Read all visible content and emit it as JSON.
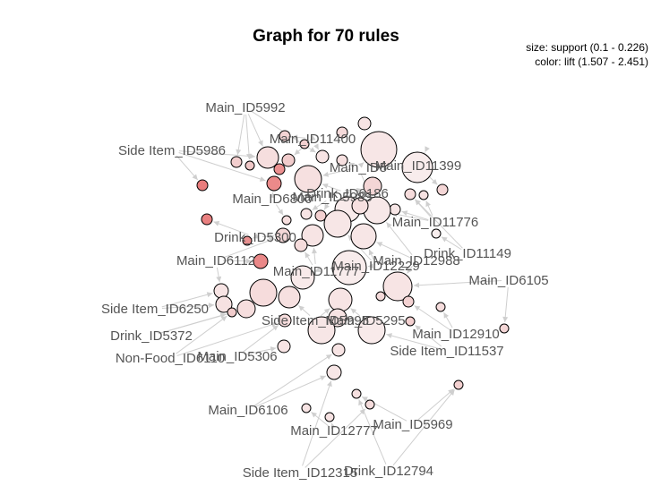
{
  "chart_data": {
    "type": "network",
    "title": "Graph for 70 rules",
    "legend": {
      "size": "size: support (0.1 - 0.226)",
      "color": "color: lift (1.507 - 2.451)"
    },
    "items": [
      "Main_ID5992",
      "Main_ID11400",
      "Side Item_ID5986",
      "Main_ID5",
      "Main_ID11399",
      "Drink_ID6186",
      "Main_ID6800",
      "Main_ID5985",
      "Main_ID11776",
      "Drink_ID5300",
      "Drink_ID11149",
      "Main_ID6112",
      "Main_ID12229",
      "Main_ID12988",
      "Main_ID11777",
      "Main_ID6105",
      "Side Item_ID6250",
      "Side Item_ID5995",
      "Main_ID5295",
      "Drink_ID5372",
      "Main_ID12910",
      "Side Item_ID11537",
      "Non-Food_ID6110",
      "Main_ID5306",
      "Main_ID6106",
      "Main_ID5969",
      "Main_ID12777",
      "Side Item_ID12315",
      "Drink_ID12794"
    ]
  }
}
